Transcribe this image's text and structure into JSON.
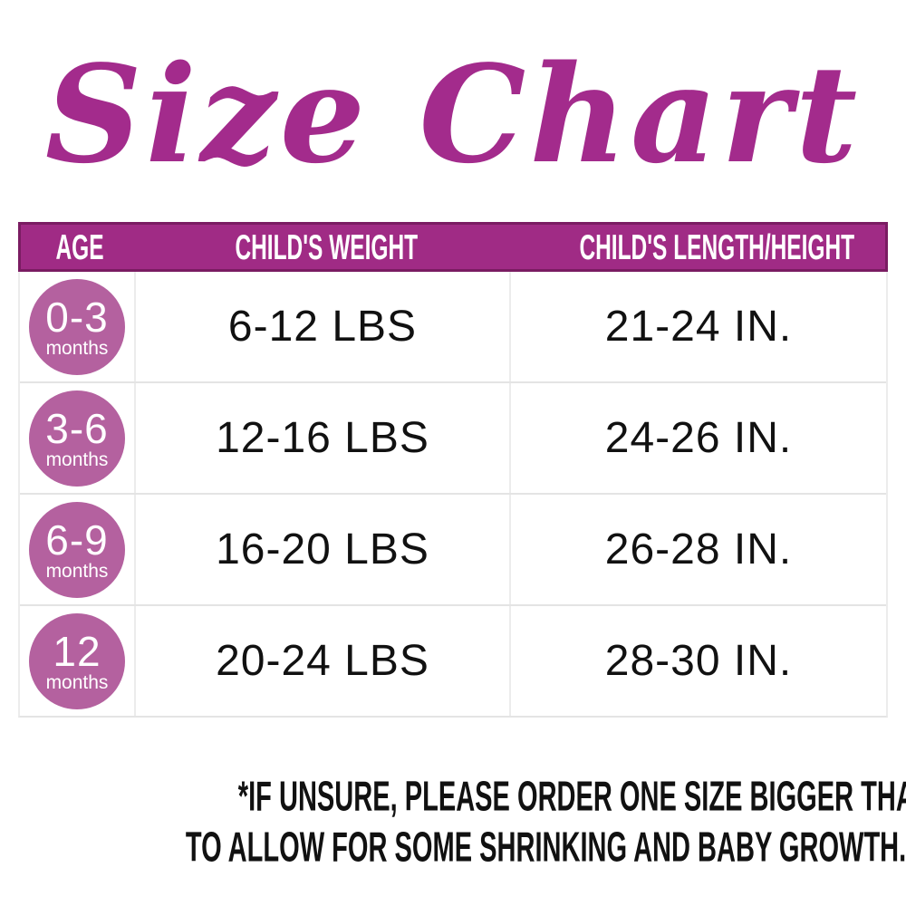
{
  "title": "Size Chart",
  "chart_data": {
    "type": "table",
    "title": "Size Chart",
    "columns": [
      "AGE",
      "CHILD'S WEIGHT",
      "CHILD'S LENGTH/HEIGHT"
    ],
    "rows": [
      [
        "0-3 months",
        "6-12 LBS",
        "21-24 IN."
      ],
      [
        "3-6 months",
        "12-16 LBS",
        "24-26 IN."
      ],
      [
        "6-9 months",
        "16-20 LBS",
        "26-28 IN."
      ],
      [
        "12 months",
        "20-24 LBS",
        "28-30 IN."
      ]
    ],
    "footnote": "*IF UNSURE, PLEASE ORDER ONE SIZE BIGGER THAN WHAT YOU NEED TO ALLOW FOR SOME SHRINKING AND BABY GROWTH."
  },
  "table": {
    "headers": [
      "AGE",
      "CHILD'S WEIGHT",
      "CHILD'S LENGTH/HEIGHT"
    ],
    "rows": [
      {
        "age": "0-3",
        "age_unit": "months",
        "weight": "6-12 LBS",
        "length": "21-24 IN."
      },
      {
        "age": "3-6",
        "age_unit": "months",
        "weight": "12-16 LBS",
        "length": "24-26 IN."
      },
      {
        "age": "6-9",
        "age_unit": "months",
        "weight": "16-20 LBS",
        "length": "26-28 IN."
      },
      {
        "age": "12",
        "age_unit": "months",
        "weight": "20-24 LBS",
        "length": "28-30 IN."
      }
    ]
  },
  "footnote": {
    "line1": "*IF UNSURE, PLEASE ORDER ONE SIZE BIGGER THAN WHAT YOU NEED",
    "line2": "TO ALLOW FOR SOME SHRINKING AND BABY GROWTH."
  },
  "colors": {
    "title_text": "#a32b8c",
    "header_background": "#a02b85",
    "header_border": "#7a1c62",
    "header_text": "#ffffff",
    "age_badge_background": "#b4619f",
    "age_badge_text": "#ffffff",
    "body_text": "#111111",
    "grid_line": "#e4e4e4"
  }
}
